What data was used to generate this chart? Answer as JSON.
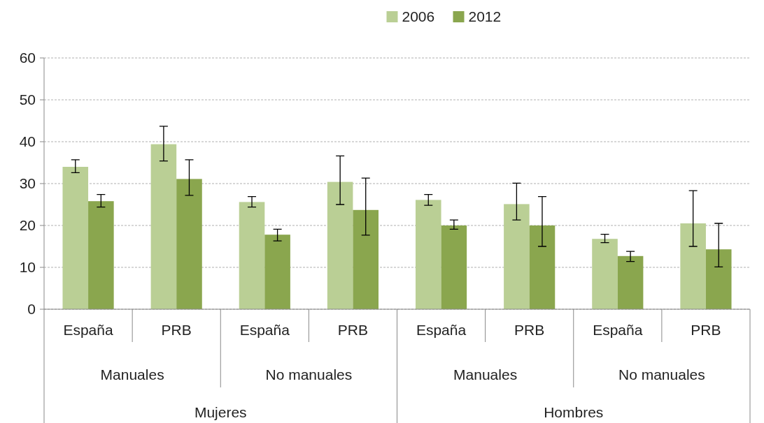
{
  "chart_data": {
    "type": "bar",
    "categories": [
      "España",
      "PRB",
      "España",
      "PRB",
      "España",
      "PRB",
      "España",
      "PRB"
    ],
    "series": [
      {
        "name": "2006",
        "color": "#bacf95",
        "values": [
          34.0,
          39.4,
          25.6,
          30.4,
          26.1,
          25.1,
          16.8,
          20.5
        ],
        "errors": [
          [
            32.6,
            35.7
          ],
          [
            35.4,
            43.7
          ],
          [
            24.4,
            26.9
          ],
          [
            25.0,
            36.6
          ],
          [
            24.8,
            27.4
          ],
          [
            21.3,
            30.1
          ],
          [
            15.9,
            17.9
          ],
          [
            15.0,
            28.3
          ]
        ]
      },
      {
        "name": "2012",
        "color": "#8aa64e",
        "values": [
          25.8,
          31.1,
          17.8,
          23.7,
          20.0,
          20.0,
          12.7,
          14.3
        ],
        "errors": [
          [
            24.4,
            27.4
          ],
          [
            27.2,
            35.7
          ],
          [
            16.3,
            19.1
          ],
          [
            17.7,
            31.3
          ],
          [
            19.1,
            21.3
          ],
          [
            15.0,
            26.9
          ],
          [
            11.4,
            13.8
          ],
          [
            10.1,
            20.5
          ]
        ]
      }
    ],
    "annotations": [
      "Manuales",
      "No manuales",
      "Manuales",
      "No manuales",
      "Mujeres",
      "Hombres"
    ],
    "ylim": [
      0,
      60
    ],
    "yticks": [
      0,
      10,
      20,
      30,
      40,
      50,
      60
    ],
    "grid": "y",
    "legend": "top"
  }
}
